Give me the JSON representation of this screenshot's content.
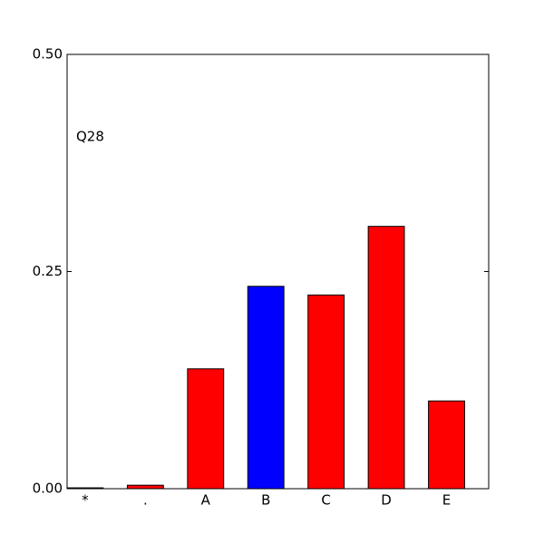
{
  "chart_data": {
    "type": "bar",
    "annotation": "Q28",
    "categories": [
      "*",
      ".",
      "A",
      "B",
      "C",
      "D",
      "E"
    ],
    "values": [
      0.001,
      0.004,
      0.138,
      0.233,
      0.223,
      0.302,
      0.101
    ],
    "colors": [
      "#ff0000",
      "#ff0000",
      "#ff0000",
      "#0000ff",
      "#ff0000",
      "#ff0000",
      "#ff0000"
    ],
    "ylim": [
      0,
      0.5
    ],
    "yticks": [
      {
        "value": 0,
        "label": "0.00"
      },
      {
        "value": 0.25,
        "label": "0.25"
      },
      {
        "value": 0.5,
        "label": "0.50"
      }
    ]
  }
}
